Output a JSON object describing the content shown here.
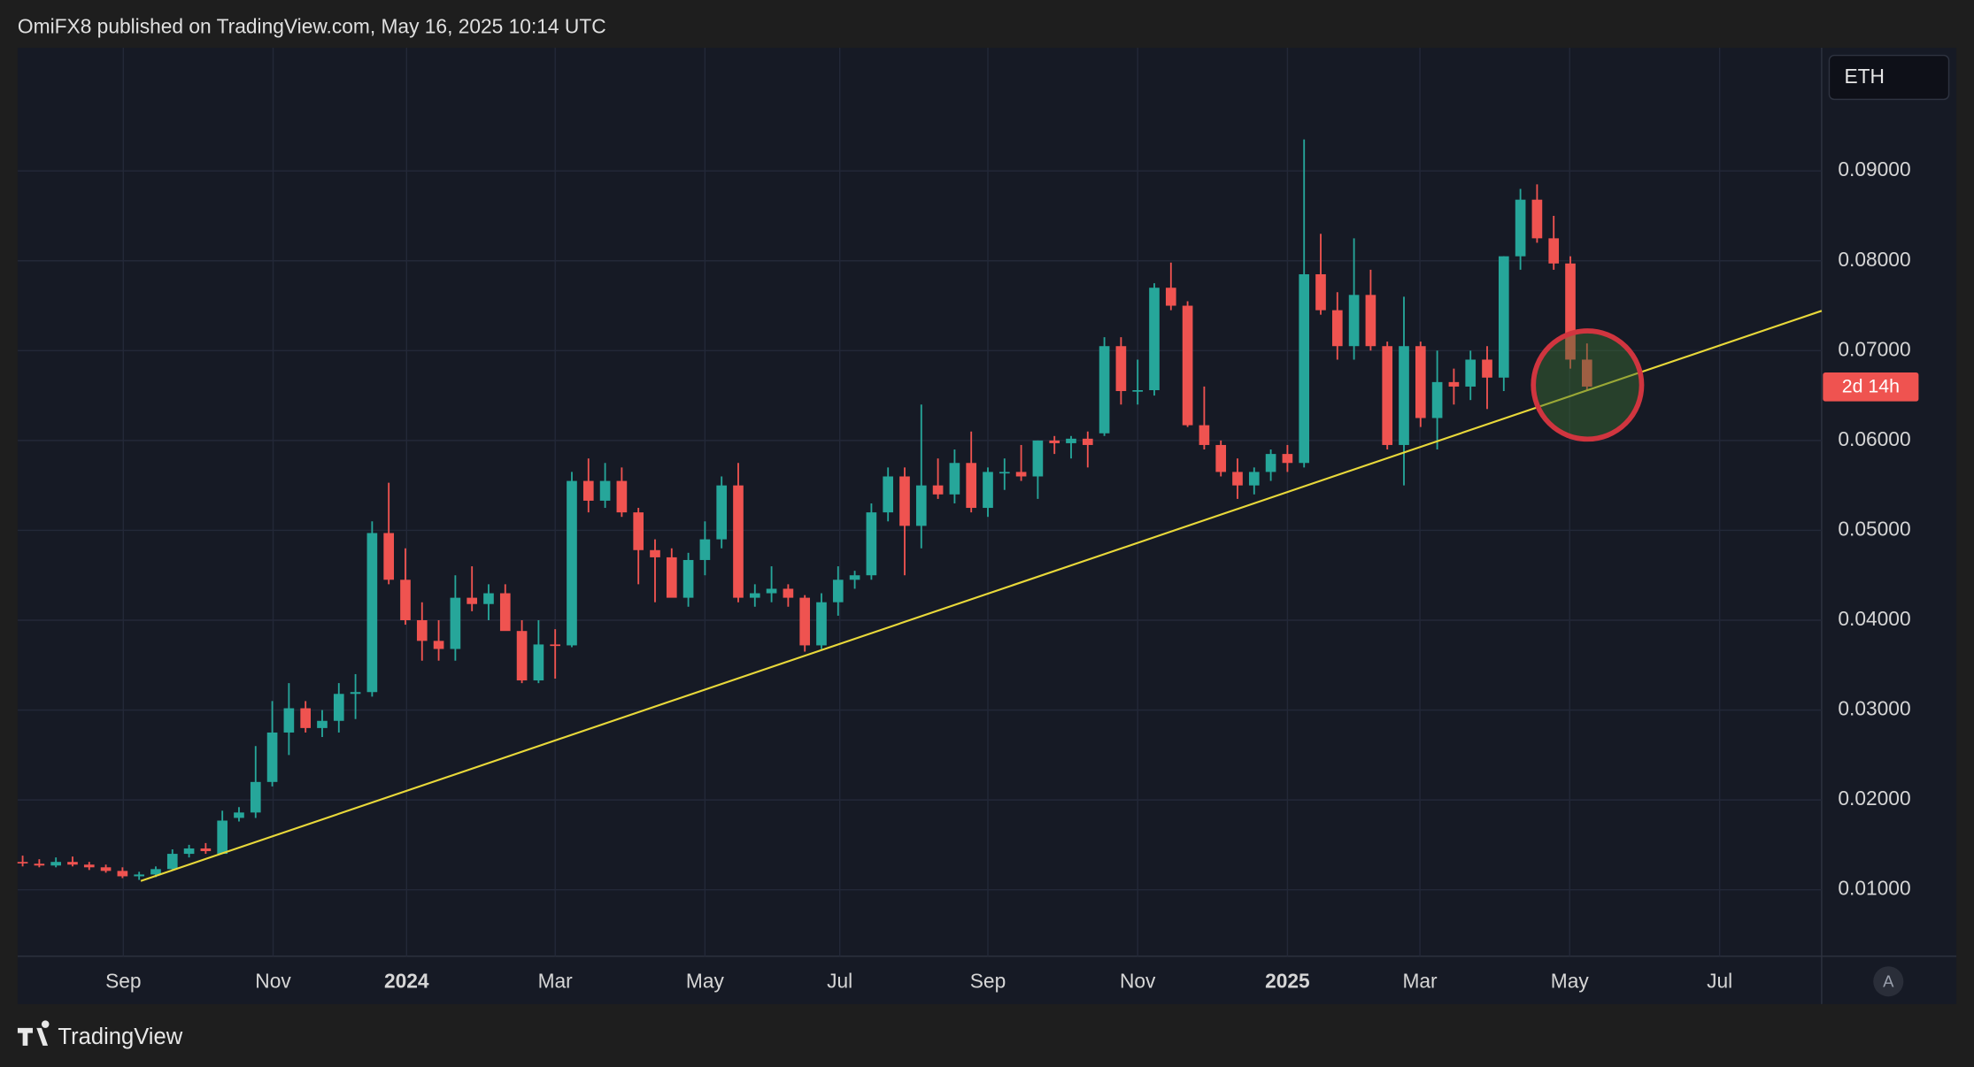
{
  "header": "OmiFX8 published on TradingView.com, May 16, 2025 10:14 UTC",
  "brand": "TradingView",
  "symbol": "ETH",
  "countdown_label": "2d 14h",
  "auto_button": "A",
  "chart_data": {
    "type": "candlestick",
    "up_color": "#26a69a",
    "down_color": "#ef5350",
    "grid": true,
    "open": [
      0.0131,
      0.0129,
      0.0127,
      0.0131,
      0.0128,
      0.0125,
      0.0121,
      0.0115,
      0.0117,
      0.0123,
      0.014,
      0.0146,
      0.014,
      0.018,
      0.0186,
      0.022,
      0.0275,
      0.0302,
      0.028,
      0.0288,
      0.0318,
      0.032,
      0.0497,
      0.0445,
      0.04,
      0.0377,
      0.0368,
      0.0425,
      0.0418,
      0.043,
      0.0388,
      0.0333,
      0.0373,
      0.0372,
      0.0555,
      0.0533,
      0.0555,
      0.052,
      0.0478,
      0.047,
      0.0425,
      0.0467,
      0.049,
      0.055,
      0.0425,
      0.043,
      0.0435,
      0.0425,
      0.0372,
      0.042,
      0.0445,
      0.045,
      0.052,
      0.056,
      0.0505,
      0.055,
      0.054,
      0.0575,
      0.0525,
      0.0565,
      0.0565,
      0.056,
      0.06,
      0.0597,
      0.0602,
      0.0608,
      0.0705,
      0.0655,
      0.0656,
      0.077,
      0.075,
      0.0617,
      0.0595,
      0.0565,
      0.055,
      0.0565,
      0.0585,
      0.0575,
      0.0785,
      0.0745,
      0.0705,
      0.0762,
      0.0705,
      0.0595,
      0.0705,
      0.0625,
      0.0665,
      0.066,
      0.069,
      0.067,
      0.0805,
      0.0868,
      0.0825,
      0.0797,
      0.069
    ],
    "high": [
      0.0138,
      0.0134,
      0.0136,
      0.0137,
      0.0131,
      0.0128,
      0.0125,
      0.012,
      0.0126,
      0.0145,
      0.015,
      0.0152,
      0.0188,
      0.0192,
      0.026,
      0.031,
      0.033,
      0.031,
      0.03,
      0.033,
      0.034,
      0.051,
      0.0553,
      0.048,
      0.042,
      0.04,
      0.045,
      0.046,
      0.044,
      0.044,
      0.04,
      0.04,
      0.039,
      0.0565,
      0.058,
      0.0575,
      0.057,
      0.0525,
      0.049,
      0.048,
      0.0475,
      0.051,
      0.056,
      0.0575,
      0.044,
      0.046,
      0.044,
      0.0428,
      0.043,
      0.046,
      0.0455,
      0.053,
      0.057,
      0.057,
      0.064,
      0.058,
      0.059,
      0.061,
      0.057,
      0.058,
      0.0595,
      0.06,
      0.0605,
      0.0605,
      0.061,
      0.0715,
      0.0715,
      0.069,
      0.0775,
      0.0798,
      0.0755,
      0.066,
      0.06,
      0.058,
      0.057,
      0.059,
      0.0595,
      0.0935,
      0.083,
      0.0765,
      0.0825,
      0.079,
      0.071,
      0.076,
      0.071,
      0.07,
      0.068,
      0.07,
      0.0705,
      0.0805,
      0.088,
      0.0885,
      0.085,
      0.0805,
      0.0708
    ],
    "low": [
      0.0126,
      0.0125,
      0.0125,
      0.0126,
      0.0122,
      0.0119,
      0.0113,
      0.0111,
      0.0114,
      0.0121,
      0.0136,
      0.014,
      0.014,
      0.0176,
      0.018,
      0.0215,
      0.025,
      0.0275,
      0.027,
      0.0275,
      0.029,
      0.0315,
      0.044,
      0.0395,
      0.0355,
      0.0355,
      0.0355,
      0.041,
      0.04,
      0.0395,
      0.033,
      0.033,
      0.0335,
      0.037,
      0.052,
      0.0525,
      0.0515,
      0.044,
      0.042,
      0.043,
      0.0415,
      0.045,
      0.048,
      0.042,
      0.0415,
      0.042,
      0.0415,
      0.0365,
      0.0368,
      0.0405,
      0.0435,
      0.0445,
      0.051,
      0.045,
      0.048,
      0.0535,
      0.053,
      0.052,
      0.0515,
      0.0545,
      0.0555,
      0.0535,
      0.0585,
      0.058,
      0.057,
      0.0605,
      0.064,
      0.064,
      0.065,
      0.0745,
      0.0615,
      0.059,
      0.056,
      0.0535,
      0.054,
      0.0555,
      0.0565,
      0.057,
      0.074,
      0.069,
      0.069,
      0.07,
      0.059,
      0.055,
      0.0615,
      0.059,
      0.064,
      0.0645,
      0.0635,
      0.0655,
      0.079,
      0.082,
      0.079,
      0.068,
      0.0655
    ],
    "close": [
      0.013,
      0.0127,
      0.0131,
      0.0128,
      0.0125,
      0.0121,
      0.0115,
      0.0117,
      0.0123,
      0.014,
      0.0146,
      0.0143,
      0.0177,
      0.0186,
      0.022,
      0.0275,
      0.0302,
      0.028,
      0.0288,
      0.0318,
      0.032,
      0.0497,
      0.0445,
      0.04,
      0.0377,
      0.0368,
      0.0425,
      0.0418,
      0.043,
      0.0388,
      0.0333,
      0.0373,
      0.0372,
      0.0555,
      0.0533,
      0.0555,
      0.052,
      0.0478,
      0.047,
      0.0425,
      0.0467,
      0.049,
      0.055,
      0.0425,
      0.043,
      0.0435,
      0.0425,
      0.0372,
      0.042,
      0.0445,
      0.045,
      0.052,
      0.056,
      0.0505,
      0.055,
      0.054,
      0.0575,
      0.0525,
      0.0565,
      0.0565,
      0.056,
      0.06,
      0.0597,
      0.0602,
      0.0595,
      0.0705,
      0.0655,
      0.0656,
      0.077,
      0.075,
      0.0617,
      0.0595,
      0.0565,
      0.055,
      0.0565,
      0.0585,
      0.0575,
      0.0785,
      0.0745,
      0.0705,
      0.0762,
      0.0705,
      0.0595,
      0.0705,
      0.0625,
      0.0665,
      0.066,
      0.069,
      0.067,
      0.0805,
      0.0868,
      0.0825,
      0.0797,
      0.069,
      0.066
    ],
    "xlim": [
      -0.3,
      108.1
    ],
    "xticks": [
      {
        "value": 6.05,
        "label": "Sep"
      },
      {
        "value": 15.05,
        "label": "Nov"
      },
      {
        "value": 23.07,
        "label": "2024"
      },
      {
        "value": 32.0,
        "label": "Mar"
      },
      {
        "value": 41.0,
        "label": "May"
      },
      {
        "value": 49.1,
        "label": "Jul"
      },
      {
        "value": 58.0,
        "label": "Sep"
      },
      {
        "value": 67.0,
        "label": "Nov"
      },
      {
        "value": 76.0,
        "label": "2025"
      },
      {
        "value": 83.96,
        "label": "Mar"
      },
      {
        "value": 92.96,
        "label": "May"
      },
      {
        "value": 101.97,
        "label": "Jul"
      }
    ],
    "ylim": [
      0.0026,
      0.1037
    ],
    "yticks": [
      {
        "value": 0.01,
        "label": "0.01000"
      },
      {
        "value": 0.02,
        "label": "0.02000"
      },
      {
        "value": 0.03,
        "label": "0.03000"
      },
      {
        "value": 0.04,
        "label": "0.04000"
      },
      {
        "value": 0.05,
        "label": "0.05000"
      },
      {
        "value": 0.06,
        "label": "0.06000"
      },
      {
        "value": 0.07,
        "label": "0.07000"
      },
      {
        "value": 0.08,
        "label": "0.08000"
      },
      {
        "value": 0.09,
        "label": "0.09000"
      }
    ],
    "trendline": {
      "color": "#e8d83a",
      "x": [
        7.1,
        108.1
      ],
      "y": [
        0.01098,
        0.07443
      ]
    }
  }
}
